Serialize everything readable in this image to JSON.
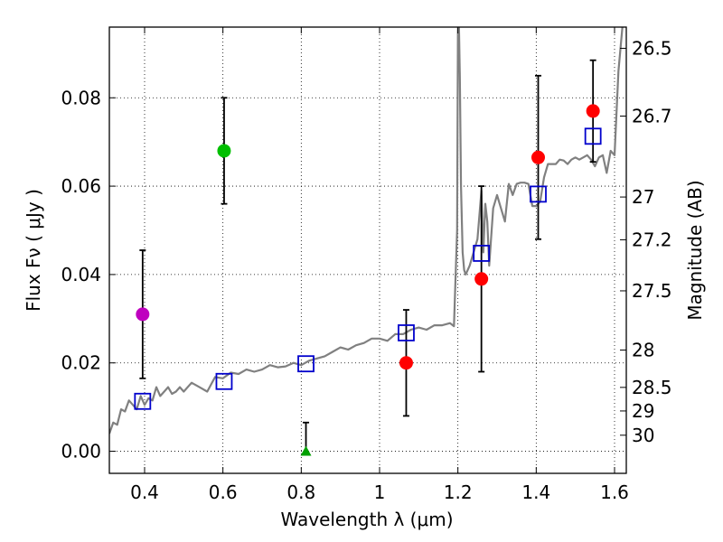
{
  "chart_data": {
    "type": "scatter",
    "xlabel": "Wavelength  λ (μm)",
    "ylabel": "Flux  Fν  ( μJy )",
    "ylabel_right": "Magnitude (AB)",
    "xlim": [
      0.31,
      1.63
    ],
    "ylim": [
      -0.005,
      0.096
    ],
    "grid": true,
    "x_ticks": [
      {
        "value": 0.4,
        "label": "0.4"
      },
      {
        "value": 0.6,
        "label": "0.6"
      },
      {
        "value": 0.8,
        "label": "0.8"
      },
      {
        "value": 1.0,
        "label": "1"
      },
      {
        "value": 1.2,
        "label": "1.2"
      },
      {
        "value": 1.4,
        "label": "1.4"
      },
      {
        "value": 1.6,
        "label": "1.6"
      }
    ],
    "y_ticks": [
      {
        "value": 0.0,
        "label": "0.00"
      },
      {
        "value": 0.02,
        "label": "0.02"
      },
      {
        "value": 0.04,
        "label": "0.04"
      },
      {
        "value": 0.06,
        "label": "0.06"
      },
      {
        "value": 0.08,
        "label": "0.08"
      }
    ],
    "mag_ticks": [
      {
        "mag": 26.5,
        "label": "26.5"
      },
      {
        "mag": 26.7,
        "label": "26.7"
      },
      {
        "mag": 27.0,
        "label": "27"
      },
      {
        "mag": 27.2,
        "label": "27.2"
      },
      {
        "mag": 27.5,
        "label": "27.5"
      },
      {
        "mag": 28.0,
        "label": "28"
      },
      {
        "mag": 28.5,
        "label": "28.5"
      },
      {
        "mag": 29.0,
        "label": "29"
      },
      {
        "mag": 30.0,
        "label": "30"
      }
    ],
    "observed_points": [
      {
        "x": 0.395,
        "y": 0.031,
        "err": 0.0145,
        "color": "#bf00bf",
        "marker": "circle"
      },
      {
        "x": 0.603,
        "y": 0.068,
        "err": 0.012,
        "color": "#00bf00",
        "marker": "circle"
      },
      {
        "x": 0.812,
        "y": 0.0,
        "err_up": 0.0065,
        "err_down": 0.0,
        "color": "#00a000",
        "marker": "triangle"
      },
      {
        "x": 1.068,
        "y": 0.02,
        "err": 0.012,
        "color": "#ff0000",
        "marker": "circle"
      },
      {
        "x": 1.26,
        "y": 0.039,
        "err": 0.021,
        "color": "#ff0000",
        "marker": "circle"
      },
      {
        "x": 1.405,
        "y": 0.0665,
        "err": 0.0185,
        "color": "#ff0000",
        "marker": "circle"
      },
      {
        "x": 1.545,
        "y": 0.077,
        "err": 0.0115,
        "color": "#ff0000",
        "marker": "circle"
      }
    ],
    "model_points": [
      {
        "x": 0.395,
        "y": 0.0113
      },
      {
        "x": 0.603,
        "y": 0.0158
      },
      {
        "x": 0.812,
        "y": 0.0198
      },
      {
        "x": 1.068,
        "y": 0.0268
      },
      {
        "x": 1.26,
        "y": 0.0448
      },
      {
        "x": 1.405,
        "y": 0.0582
      },
      {
        "x": 1.545,
        "y": 0.0713
      }
    ],
    "model_spectrum": {
      "color": "#808080",
      "x": [
        0.31,
        0.32,
        0.33,
        0.34,
        0.35,
        0.36,
        0.37,
        0.38,
        0.39,
        0.4,
        0.41,
        0.42,
        0.43,
        0.44,
        0.45,
        0.46,
        0.47,
        0.48,
        0.49,
        0.5,
        0.52,
        0.54,
        0.56,
        0.58,
        0.6,
        0.62,
        0.64,
        0.66,
        0.68,
        0.7,
        0.72,
        0.74,
        0.76,
        0.78,
        0.8,
        0.82,
        0.84,
        0.86,
        0.88,
        0.9,
        0.92,
        0.94,
        0.96,
        0.98,
        1.0,
        1.02,
        1.04,
        1.06,
        1.08,
        1.1,
        1.12,
        1.14,
        1.16,
        1.18,
        1.19,
        1.198,
        1.2,
        1.202,
        1.205,
        1.208,
        1.212,
        1.216,
        1.22,
        1.23,
        1.24,
        1.25,
        1.26,
        1.265,
        1.27,
        1.275,
        1.28,
        1.29,
        1.3,
        1.31,
        1.32,
        1.33,
        1.34,
        1.35,
        1.36,
        1.37,
        1.38,
        1.39,
        1.4,
        1.41,
        1.42,
        1.43,
        1.44,
        1.45,
        1.46,
        1.47,
        1.48,
        1.49,
        1.5,
        1.51,
        1.52,
        1.53,
        1.54,
        1.55,
        1.56,
        1.57,
        1.58,
        1.59,
        1.6,
        1.61,
        1.62
      ],
      "y": [
        0.004,
        0.0065,
        0.006,
        0.0095,
        0.009,
        0.0115,
        0.0105,
        0.0095,
        0.0125,
        0.0105,
        0.012,
        0.0115,
        0.0145,
        0.0125,
        0.0135,
        0.0145,
        0.013,
        0.0135,
        0.0145,
        0.0135,
        0.0155,
        0.0145,
        0.0135,
        0.0168,
        0.0165,
        0.0178,
        0.0175,
        0.0185,
        0.018,
        0.0185,
        0.0195,
        0.019,
        0.0192,
        0.02,
        0.0195,
        0.0205,
        0.021,
        0.0215,
        0.0225,
        0.0235,
        0.023,
        0.024,
        0.0245,
        0.0255,
        0.0255,
        0.025,
        0.0265,
        0.0265,
        0.0275,
        0.028,
        0.0275,
        0.0285,
        0.0285,
        0.029,
        0.0283,
        0.05,
        0.095,
        0.1,
        0.085,
        0.06,
        0.045,
        0.041,
        0.04,
        0.042,
        0.045,
        0.048,
        0.059,
        0.045,
        0.056,
        0.052,
        0.042,
        0.055,
        0.058,
        0.055,
        0.052,
        0.0605,
        0.058,
        0.0605,
        0.0608,
        0.0608,
        0.0605,
        0.0555,
        0.0555,
        0.0565,
        0.062,
        0.065,
        0.065,
        0.065,
        0.066,
        0.0658,
        0.065,
        0.066,
        0.0665,
        0.066,
        0.0665,
        0.067,
        0.066,
        0.0645,
        0.0665,
        0.067,
        0.063,
        0.068,
        0.067,
        0.086,
        0.096
      ]
    }
  }
}
